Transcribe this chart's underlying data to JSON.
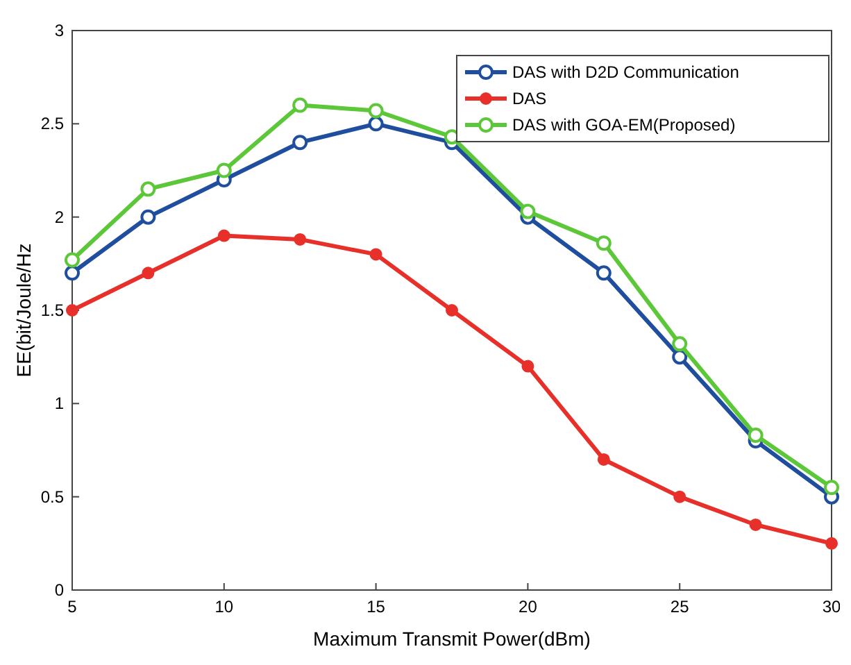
{
  "chart_data": {
    "type": "line",
    "xlabel": "Maximum Transmit Power(dBm)",
    "ylabel": "EE(bit/Joule/Hz",
    "x": [
      5,
      7.5,
      10,
      12.5,
      15,
      17.5,
      20,
      22.5,
      25,
      27.5,
      30
    ],
    "xlim": [
      5,
      30
    ],
    "xticks": [
      5,
      10,
      15,
      20,
      25,
      30
    ],
    "ylim": [
      0,
      3
    ],
    "yticks": [
      0,
      0.5,
      1,
      1.5,
      2,
      2.5,
      3
    ],
    "marker": "circle",
    "line_style": "solid",
    "legend": "top right",
    "series": [
      {
        "name": "DAS with D2D Communication",
        "color": "#1f4e9e",
        "values": [
          1.7,
          2.0,
          2.2,
          2.4,
          2.5,
          2.4,
          2.0,
          1.7,
          1.25,
          0.8,
          0.5
        ]
      },
      {
        "name": "DAS",
        "color": "#e8302a",
        "values": [
          1.5,
          1.7,
          1.9,
          1.88,
          1.8,
          1.5,
          1.2,
          0.7,
          0.5,
          0.35,
          0.25
        ]
      },
      {
        "name": "DAS with GOA-EM(Proposed)",
        "color": "#5cc738",
        "values": [
          1.77,
          2.15,
          2.25,
          2.6,
          2.57,
          2.43,
          2.03,
          1.86,
          1.32,
          0.83,
          0.55
        ]
      }
    ]
  }
}
